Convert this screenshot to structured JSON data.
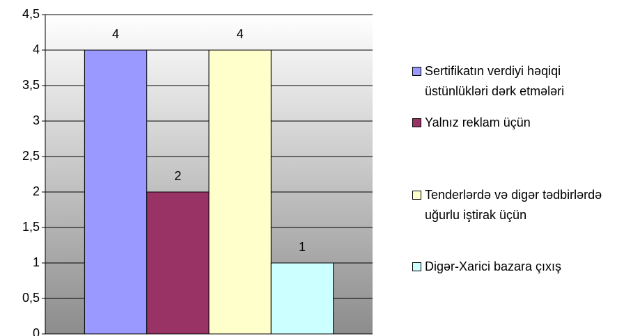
{
  "chart_data": {
    "type": "bar",
    "categories": [
      null
    ],
    "series": [
      {
        "name": "Sertifikatın verdiyi həqiqi üstünlükləri dərk etmələri",
        "color": "#9999ff",
        "values": [
          4
        ]
      },
      {
        "name": "Yalnız reklam üçün",
        "color": "#993366",
        "values": [
          2
        ]
      },
      {
        "name": "Tenderlərdə və digər tədbirlərdə uğurlu iştirak üçün",
        "color": "#ffffcc",
        "values": [
          4
        ]
      },
      {
        "name": "Digər-Xarici bazara çıxış",
        "color": "#ccffff",
        "values": [
          1
        ]
      }
    ],
    "ylim": [
      0,
      4.5
    ],
    "yticks": [
      0,
      {
        "value": 0.5,
        "label": "0,5"
      },
      1,
      {
        "value": 1.5,
        "label": "1,5"
      },
      2,
      {
        "value": 2.5,
        "label": "2,5"
      },
      3,
      {
        "value": 3.5,
        "label": "3,5"
      },
      4,
      {
        "value": 4.5,
        "label": "4,5"
      }
    ],
    "grid": true,
    "legend": "right"
  }
}
